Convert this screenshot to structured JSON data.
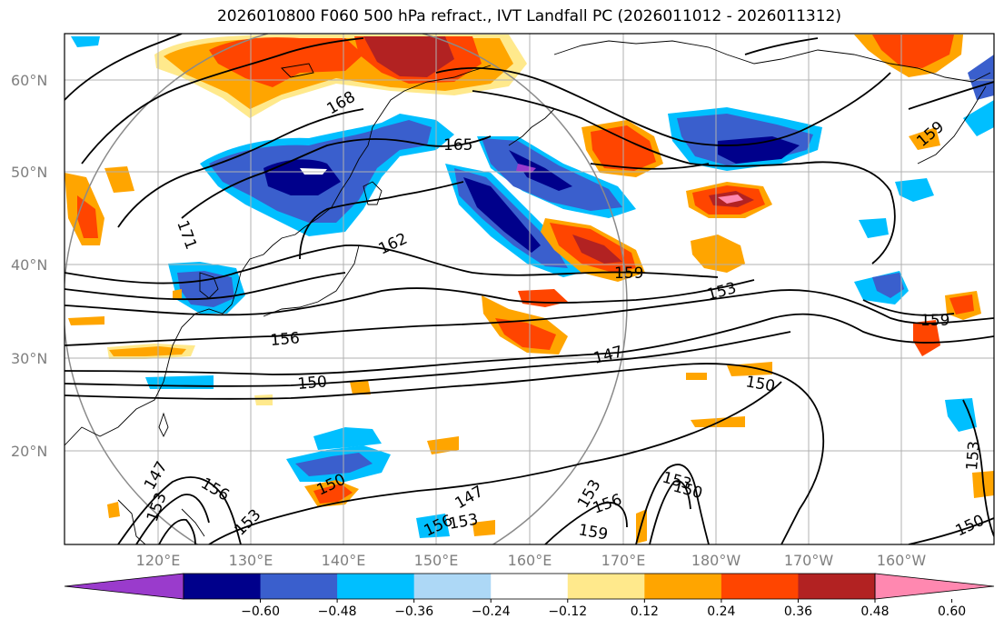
{
  "title": "2026010800 F060 500 hPa refract., IVT Landfall PC (2026011012 - 2026011312)",
  "lat_labels": [
    "60°N",
    "50°N",
    "40°N",
    "30°N",
    "20°N"
  ],
  "lon_labels": [
    "120°E",
    "130°E",
    "140°E",
    "150°E",
    "160°E",
    "170°E",
    "180°W",
    "170°W",
    "160°W"
  ],
  "colorbar": {
    "colors": [
      "#9a3bcc",
      "#00008b",
      "#3a5fcd",
      "#00bfff",
      "#add8f6",
      "#ffffff",
      "#ffe98c",
      "#ffa500",
      "#ff4500",
      "#b22222",
      "#ff88b0"
    ],
    "tick_labels": [
      "−0.60",
      "−0.48",
      "−0.36",
      "−0.24",
      "−0.12",
      "0.12",
      "0.24",
      "0.36",
      "0.48",
      "0.60"
    ]
  },
  "contour_labels": [
    "168",
    "165",
    "171",
    "162",
    "159",
    "153",
    "156",
    "150",
    "147",
    "159",
    "150",
    "159",
    "153",
    "150",
    "156",
    "153",
    "156",
    "153",
    "150",
    "159",
    "147",
    "147",
    "153",
    "156",
    "153",
    "150",
    "153"
  ]
}
